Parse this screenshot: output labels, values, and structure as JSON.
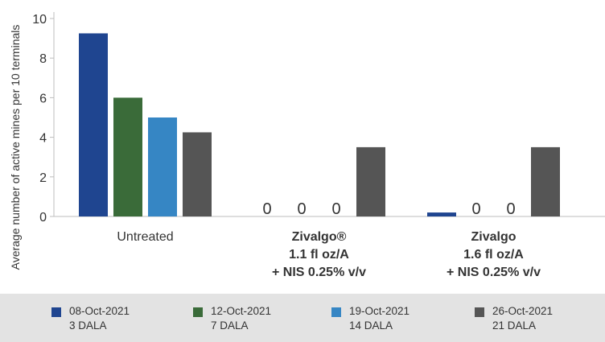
{
  "chart_data": {
    "type": "bar",
    "ylabel": "Average number of active mines per 10 terminals",
    "xlabel": "",
    "ylim": [
      0,
      10
    ],
    "yticks": [
      "0",
      "2",
      "4",
      "6",
      "8",
      "10"
    ],
    "grid": false,
    "legend_position": "bottom",
    "categories": [
      [
        "Untreated"
      ],
      [
        "Zivalgo®",
        "1.1 fl oz/A",
        "+ NIS 0.25% v/v"
      ],
      [
        "Zivalgo",
        "1.6 fl oz/A",
        "+ NIS 0.25% v/v"
      ]
    ],
    "series": [
      {
        "name": "08-Oct-2021",
        "sub": "3 DALA",
        "color": "#1f4590",
        "values": [
          9.25,
          0,
          0.2
        ],
        "labels": [
          "",
          "0",
          ""
        ]
      },
      {
        "name": "12-Oct-2021",
        "sub": "7 DALA",
        "color": "#3a6b39",
        "values": [
          6.0,
          0,
          0
        ],
        "labels": [
          "",
          "0",
          "0"
        ]
      },
      {
        "name": "19-Oct-2021",
        "sub": "14 DALA",
        "color": "#3686c4",
        "values": [
          5.0,
          0,
          0
        ],
        "labels": [
          "",
          "0",
          "0"
        ]
      },
      {
        "name": "26-Oct-2021",
        "sub": "21 DALA",
        "color": "#555555",
        "values": [
          4.25,
          3.5,
          3.5
        ],
        "labels": [
          "",
          "",
          ""
        ]
      }
    ]
  }
}
